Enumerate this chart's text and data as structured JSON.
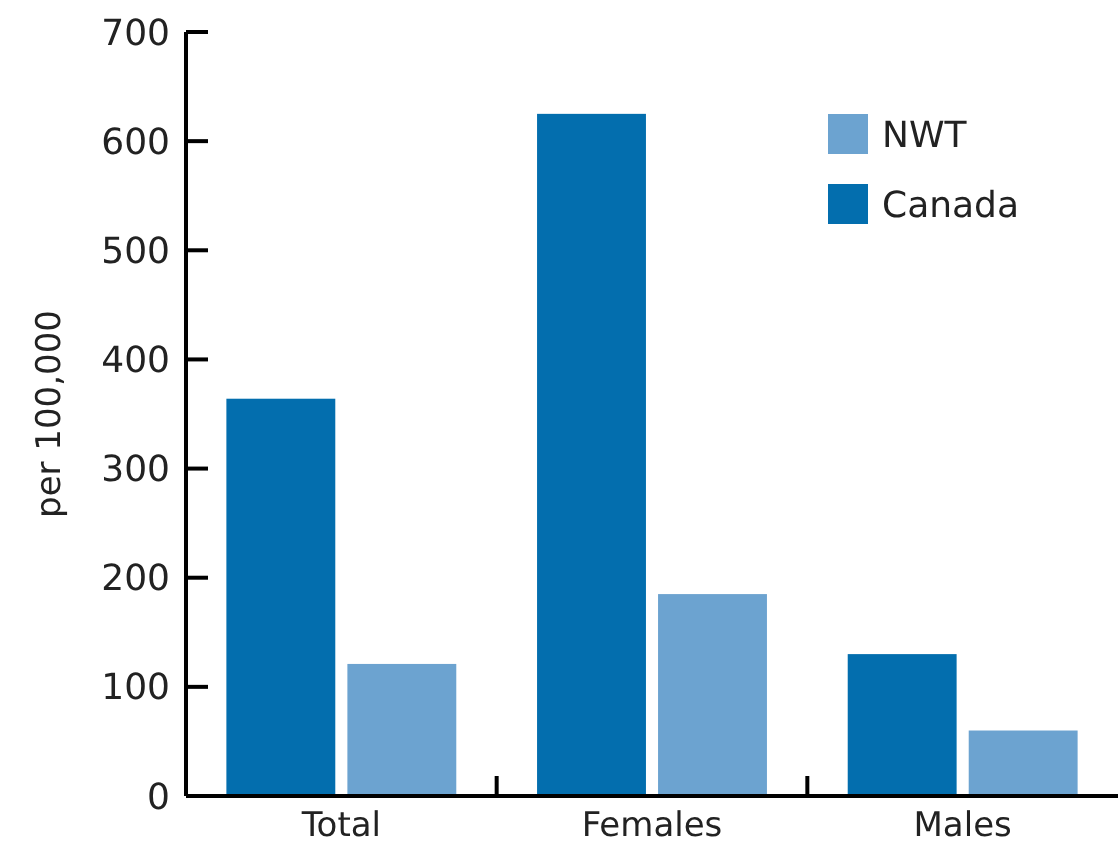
{
  "chart_data": {
    "type": "bar",
    "ylabel": "per 100,000",
    "categories": [
      "Total",
      "Females",
      "Males"
    ],
    "series": [
      {
        "name": "Canada",
        "color": "#036eae",
        "values": [
          364,
          625,
          130
        ]
      },
      {
        "name": "NWT",
        "color": "#6ca3d0",
        "values": [
          121,
          185,
          60
        ]
      }
    ],
    "ylim": [
      0,
      700
    ],
    "yticks": [
      0,
      100,
      200,
      300,
      400,
      500,
      600,
      700
    ],
    "legend": "top right",
    "grid": false
  }
}
